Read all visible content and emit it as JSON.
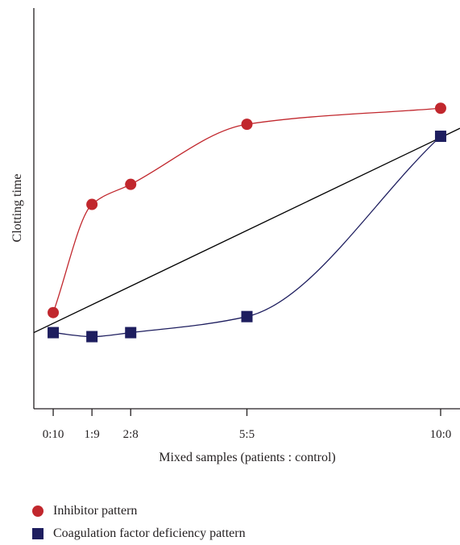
{
  "chart_data": {
    "type": "line",
    "title": "",
    "xlabel": "Mixed samples (patients : control)",
    "ylabel": "Clotting time",
    "categories": [
      "0:10",
      "1:9",
      "2:8",
      "5:5",
      "10:0"
    ],
    "x": [
      0,
      1,
      2,
      5,
      10
    ],
    "xlim": [
      -0.5,
      10.5
    ],
    "ylim": [
      0,
      100
    ],
    "series": [
      {
        "name": "Inhibitor pattern",
        "marker": "circle",
        "color": "#c1272d",
        "values": [
          24,
          51,
          56,
          71,
          75
        ]
      },
      {
        "name": "Coagulation factor deficiency pattern",
        "marker": "square",
        "color": "#1e1e5f",
        "values": [
          19,
          18,
          19,
          23,
          68
        ]
      }
    ],
    "reference_line": {
      "color": "#000000",
      "from": [
        -0.5,
        19
      ],
      "to": [
        10.5,
        70
      ]
    },
    "grid": false,
    "legend_position": "bottom-left"
  }
}
